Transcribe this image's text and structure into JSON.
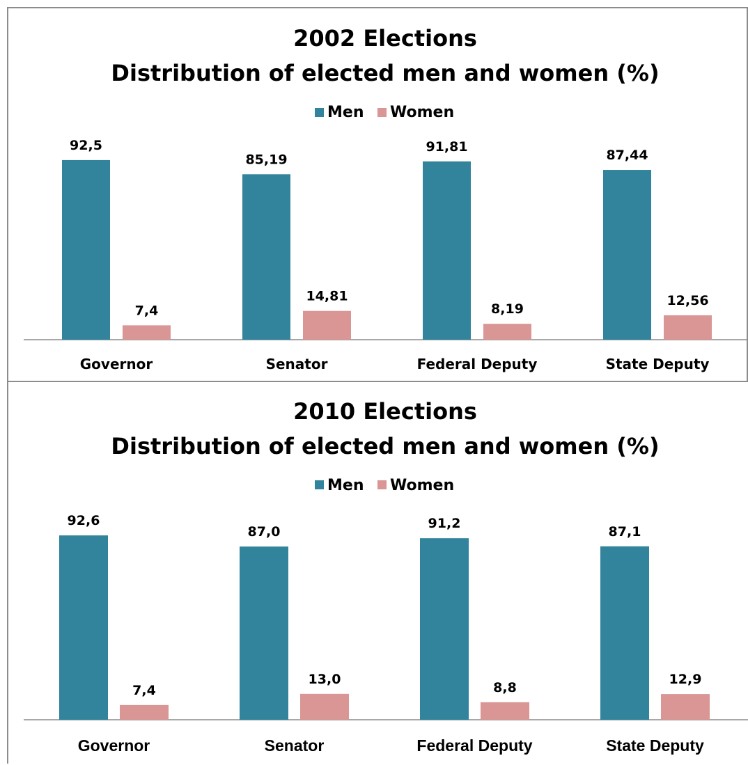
{
  "colors": {
    "men": "#31849B",
    "women": "#D99694",
    "axis": "#8c8c8c"
  },
  "chart_data": [
    {
      "type": "bar",
      "title": "2002 Elections",
      "subtitle": "Distribution of elected men and women (%)",
      "categories": [
        "Governor",
        "Senator",
        "Federal Deputy",
        "State Deputy"
      ],
      "series": [
        {
          "name": "Men",
          "values": [
            92.5,
            85.19,
            91.81,
            87.44
          ],
          "labels": [
            "92,5",
            "85,19",
            "91,81",
            "87,44"
          ]
        },
        {
          "name": "Women",
          "values": [
            7.4,
            14.81,
            8.19,
            12.56
          ],
          "labels": [
            "7,4",
            "14,81",
            "8,19",
            "12,56"
          ]
        }
      ],
      "legend": "top",
      "grid": false,
      "ylim": [
        0,
        100
      ]
    },
    {
      "type": "bar",
      "title": "2010 Elections",
      "subtitle": "Distribution of elected men and women (%)",
      "categories": [
        "Governor",
        "Senator",
        "Federal Deputy",
        "State Deputy"
      ],
      "series": [
        {
          "name": "Men",
          "values": [
            92.6,
            87.0,
            91.2,
            87.1
          ],
          "labels": [
            "92,6",
            "87,0",
            "91,2",
            "87,1"
          ]
        },
        {
          "name": "Women",
          "values": [
            7.4,
            13.0,
            8.8,
            12.9
          ],
          "labels": [
            "7,4",
            "13,0",
            "8,8",
            "12,9"
          ]
        }
      ],
      "legend": "top",
      "grid": false,
      "ylim": [
        0,
        100
      ]
    }
  ]
}
